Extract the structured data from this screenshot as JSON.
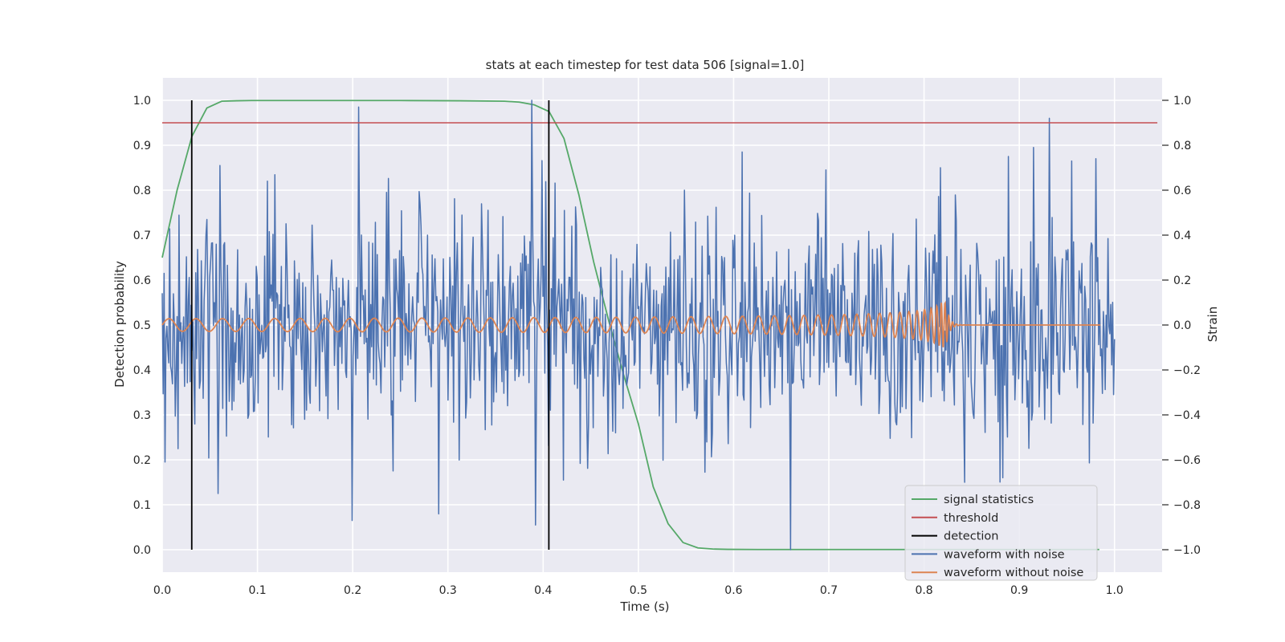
{
  "chart_data": {
    "type": "line",
    "title": "stats at each timestep for test data 506 [signal=1.0]",
    "xlabel": "Time (s)",
    "ylabel_left": "Detection probability",
    "ylabel_right": "Strain",
    "xlim": [
      0.0,
      1.05
    ],
    "ylim_left": [
      -0.05,
      1.05
    ],
    "ylim_right": [
      -1.1,
      1.1
    ],
    "x_ticks": [
      "0.0",
      "0.1",
      "0.2",
      "0.3",
      "0.4",
      "0.5",
      "0.6",
      "0.7",
      "0.8",
      "0.9",
      "1.0"
    ],
    "y_left_ticks": [
      "0.0",
      "0.1",
      "0.2",
      "0.3",
      "0.4",
      "0.5",
      "0.6",
      "0.7",
      "0.8",
      "0.9",
      "1.0"
    ],
    "y_right_ticks": [
      "−1.0",
      "−0.8",
      "−0.6",
      "−0.4",
      "−0.2",
      "0.0",
      "0.2",
      "0.4",
      "0.6",
      "0.8",
      "1.0"
    ],
    "grid": true,
    "legend_position": "lower right",
    "colors": {
      "background": "#eaeaf2",
      "signal_statistics": "#55a868",
      "threshold": "#c44e52",
      "detection": "#000000",
      "waveform_with_noise": "#4c72b0",
      "waveform_without_noise": "#dd8452"
    },
    "series": [
      {
        "name": "signal statistics",
        "axis": "left",
        "x": [
          0.0,
          0.0156,
          0.0312,
          0.0469,
          0.0625,
          0.0781,
          0.0938,
          0.1094,
          0.125,
          0.1875,
          0.25,
          0.3125,
          0.3594,
          0.375,
          0.3906,
          0.4062,
          0.4219,
          0.4375,
          0.4531,
          0.4688,
          0.4844,
          0.5,
          0.5156,
          0.5312,
          0.5469,
          0.5625,
          0.5781,
          0.5938,
          0.625,
          0.7,
          0.8,
          0.9,
          0.984
        ],
        "values": [
          0.65,
          0.8,
          0.92,
          0.983,
          0.998,
          0.999,
          0.9995,
          0.9995,
          0.9995,
          0.9995,
          0.9995,
          0.999,
          0.998,
          0.996,
          0.99,
          0.975,
          0.915,
          0.79,
          0.64,
          0.51,
          0.39,
          0.28,
          0.14,
          0.058,
          0.016,
          0.004,
          0.0015,
          0.0008,
          0.0005,
          0.0005,
          0.0005,
          0.0005,
          0.0005
        ]
      },
      {
        "name": "threshold",
        "axis": "left",
        "x": [
          0.0,
          1.045
        ],
        "values": [
          0.95,
          0.95
        ]
      },
      {
        "name": "detection",
        "axis": "left",
        "x_positions": [
          0.031,
          0.406
        ],
        "range": [
          0.0,
          1.0
        ]
      },
      {
        "name": "waveform with noise",
        "axis": "right",
        "x_range": [
          0.0,
          1.0
        ],
        "noise_std": 0.24,
        "spikes": [
          {
            "x": 0.003,
            "y": -0.61
          },
          {
            "x": 0.0605,
            "y": 0.71
          },
          {
            "x": 0.0585,
            "y": -0.75
          },
          {
            "x": 0.1105,
            "y": 0.64
          },
          {
            "x": 0.199,
            "y": -0.87
          },
          {
            "x": 0.206,
            "y": 0.97
          },
          {
            "x": 0.236,
            "y": 0.59
          },
          {
            "x": 0.388,
            "y": 1.0
          },
          {
            "x": 0.392,
            "y": -0.89
          },
          {
            "x": 0.421,
            "y": -0.69
          },
          {
            "x": 0.548,
            "y": 0.6
          },
          {
            "x": 0.609,
            "y": 0.77
          },
          {
            "x": 0.66,
            "y": -1.0
          },
          {
            "x": 0.697,
            "y": 0.69
          },
          {
            "x": 0.817,
            "y": 0.7
          },
          {
            "x": 0.843,
            "y": -0.7
          },
          {
            "x": 0.889,
            "y": 0.75
          },
          {
            "x": 0.915,
            "y": 0.79
          },
          {
            "x": 0.955,
            "y": 0.73
          },
          {
            "x": 0.98,
            "y": 0.74
          }
        ]
      },
      {
        "name": "waveform without noise",
        "axis": "right",
        "x_range": [
          0.0,
          0.985
        ],
        "amplitude_start": 0.028,
        "amplitude_peak": 0.1,
        "merger_time": 0.823,
        "frequency_start_hz": 35
      }
    ],
    "legend": [
      "signal statistics",
      "threshold",
      "detection",
      "waveform with noise",
      "waveform without noise"
    ]
  }
}
